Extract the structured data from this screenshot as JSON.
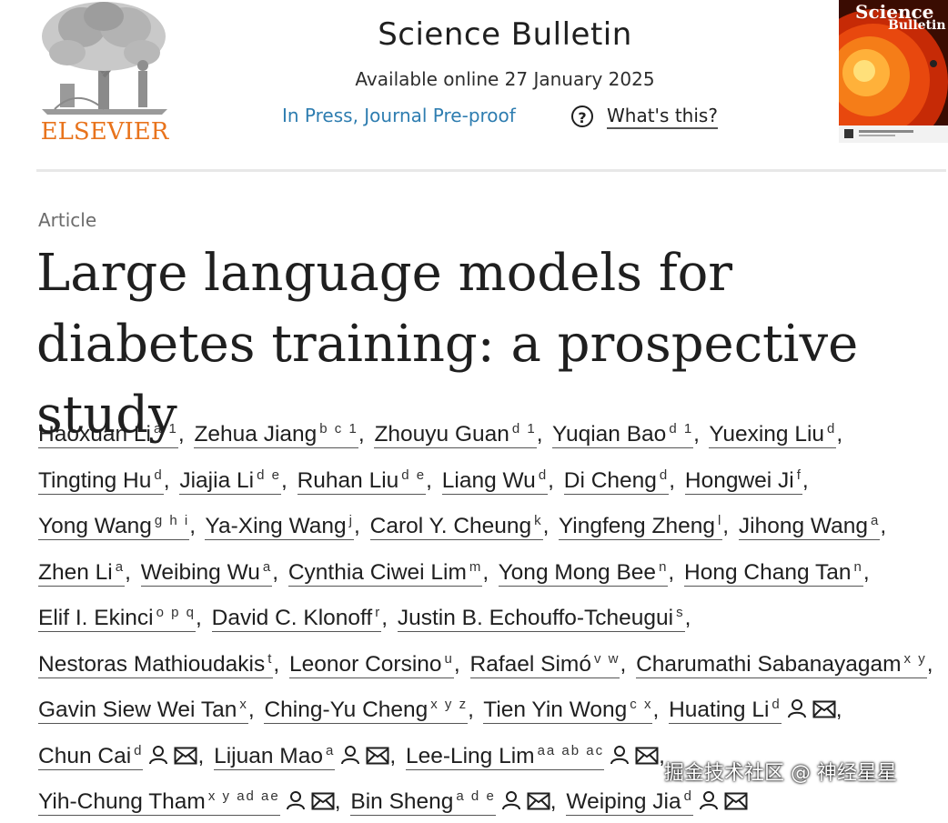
{
  "header": {
    "publisher_logo_text": "ELSEVIER",
    "journal_name": "Science Bulletin",
    "available_online": "Available online 27 January 2025",
    "status_link": "In Press, Journal Pre-proof",
    "whats_this": "What's this?",
    "cover_title": "Science",
    "cover_subtitle": "Bulletin"
  },
  "article": {
    "type": "Article",
    "title": "Large language models for diabetes training: a prospective study"
  },
  "authors": [
    {
      "name": "Haoxuan Li",
      "aff": "a 1"
    },
    {
      "name": "Zehua Jiang",
      "aff": "b c 1"
    },
    {
      "name": "Zhouyu Guan",
      "aff": "d 1"
    },
    {
      "name": "Yuqian Bao",
      "aff": "d 1"
    },
    {
      "name": "Yuexing Liu",
      "aff": "d"
    },
    {
      "name": "Tingting Hu",
      "aff": "d"
    },
    {
      "name": "Jiajia Li",
      "aff": "d e"
    },
    {
      "name": "Ruhan Liu",
      "aff": "d e"
    },
    {
      "name": "Liang Wu",
      "aff": "d"
    },
    {
      "name": "Di Cheng",
      "aff": "d"
    },
    {
      "name": "Hongwei Ji",
      "aff": "f"
    },
    {
      "name": "Yong Wang",
      "aff": "g h i"
    },
    {
      "name": "Ya-Xing Wang",
      "aff": "j"
    },
    {
      "name": "Carol Y. Cheung",
      "aff": "k"
    },
    {
      "name": "Yingfeng Zheng",
      "aff": "l"
    },
    {
      "name": "Jihong Wang",
      "aff": "a"
    },
    {
      "name": "Zhen Li",
      "aff": "a"
    },
    {
      "name": "Weibing Wu",
      "aff": "a"
    },
    {
      "name": "Cynthia Ciwei Lim",
      "aff": "m"
    },
    {
      "name": "Yong Mong Bee",
      "aff": "n"
    },
    {
      "name": "Hong Chang Tan",
      "aff": "n"
    },
    {
      "name": "Elif I. Ekinci",
      "aff": "o p q"
    },
    {
      "name": "David C. Klonoff",
      "aff": "r"
    },
    {
      "name": "Justin B. Echouffo-Tcheugui",
      "aff": "s"
    },
    {
      "name": "Nestoras Mathioudakis",
      "aff": "t"
    },
    {
      "name": "Leonor Corsino",
      "aff": "u"
    },
    {
      "name": "Rafael Simó",
      "aff": "v w"
    },
    {
      "name": "Charumathi Sabanayagam",
      "aff": "x y"
    },
    {
      "name": "Gavin Siew Wei Tan",
      "aff": "x"
    },
    {
      "name": "Ching-Yu Cheng",
      "aff": "x y z"
    },
    {
      "name": "Tien Yin Wong",
      "aff": "c x"
    },
    {
      "name": "Huating Li",
      "aff": "d",
      "corresponding": true
    },
    {
      "name": "Chun Cai",
      "aff": "d",
      "corresponding": true
    },
    {
      "name": "Lijuan Mao",
      "aff": "a",
      "corresponding": true
    },
    {
      "name": "Lee-Ling Lim",
      "aff": "aa ab ac",
      "corresponding": true
    },
    {
      "name": "Yih-Chung Tham",
      "aff": "x y ad ae",
      "corresponding": true
    },
    {
      "name": "Bin Sheng",
      "aff": "a d e",
      "corresponding": true
    },
    {
      "name": "Weiping Jia",
      "aff": "d",
      "corresponding": true
    }
  ],
  "watermark": "掘金技术社区 @ 神经星星"
}
